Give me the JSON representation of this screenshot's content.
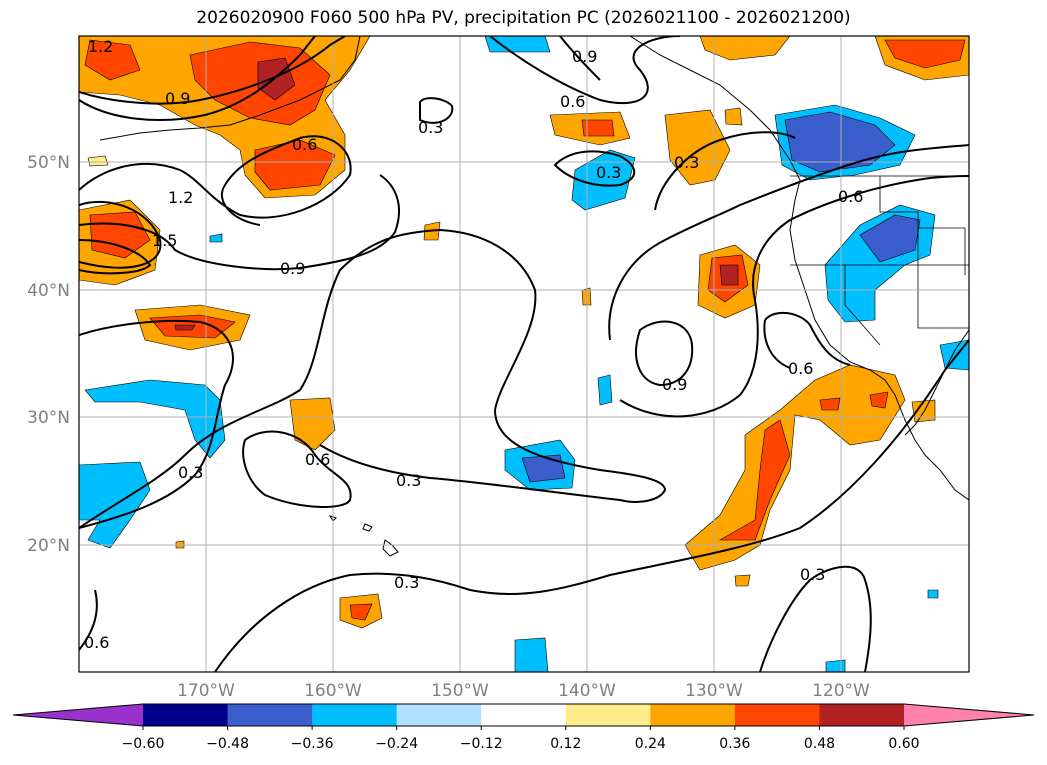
{
  "title": "2026020900 F060 500 hPa PV, precipitation PC (2026021100 - 2026021200)",
  "axes": {
    "lon_labels": [
      "170°W",
      "160°W",
      "150°W",
      "140°W",
      "130°W",
      "120°W"
    ],
    "lat_labels": [
      "50°N",
      "40°N",
      "30°N",
      "20°N"
    ],
    "lon_range": [
      -180,
      -110
    ],
    "lat_range": [
      10,
      60
    ],
    "grid": true
  },
  "colorbar": {
    "tick_labels": [
      "−0.60",
      "−0.48",
      "−0.36",
      "−0.24",
      "−0.12",
      "0.12",
      "0.24",
      "0.36",
      "0.48",
      "0.60"
    ],
    "levels": [
      -0.6,
      -0.48,
      -0.36,
      -0.24,
      -0.12,
      0.12,
      0.24,
      0.36,
      0.48,
      0.6
    ],
    "colors": [
      "#9932cc",
      "#00008b",
      "#3a5fcd",
      "#00bfff",
      "#b0e2ff",
      "#ffffff",
      "#ffec8b",
      "#ffa500",
      "#ff4500",
      "#b22222",
      "#ff82ab"
    ],
    "extend": "both"
  },
  "contour_labels": [
    "1.2",
    "0.9",
    "0.6",
    "1.2",
    "1.5",
    "0.9",
    "0.3",
    "0.9",
    "0.6",
    "0.3",
    "0.3",
    "0.6",
    "0.9",
    "0.6",
    "0.3",
    "0.6",
    "0.3",
    "0.3",
    "0.3",
    "0.6"
  ],
  "chart_data": {
    "type": "contour-map",
    "title": "2026020900 F060 500 hPa PV, precipitation PC (2026021100 - 2026021200)",
    "contour_levels": [
      0.3,
      0.6,
      0.9,
      1.2,
      1.5
    ],
    "fill_levels": [
      -0.6,
      -0.48,
      -0.36,
      -0.24,
      -0.12,
      0.12,
      0.24,
      0.36,
      0.48,
      0.6
    ]
  }
}
